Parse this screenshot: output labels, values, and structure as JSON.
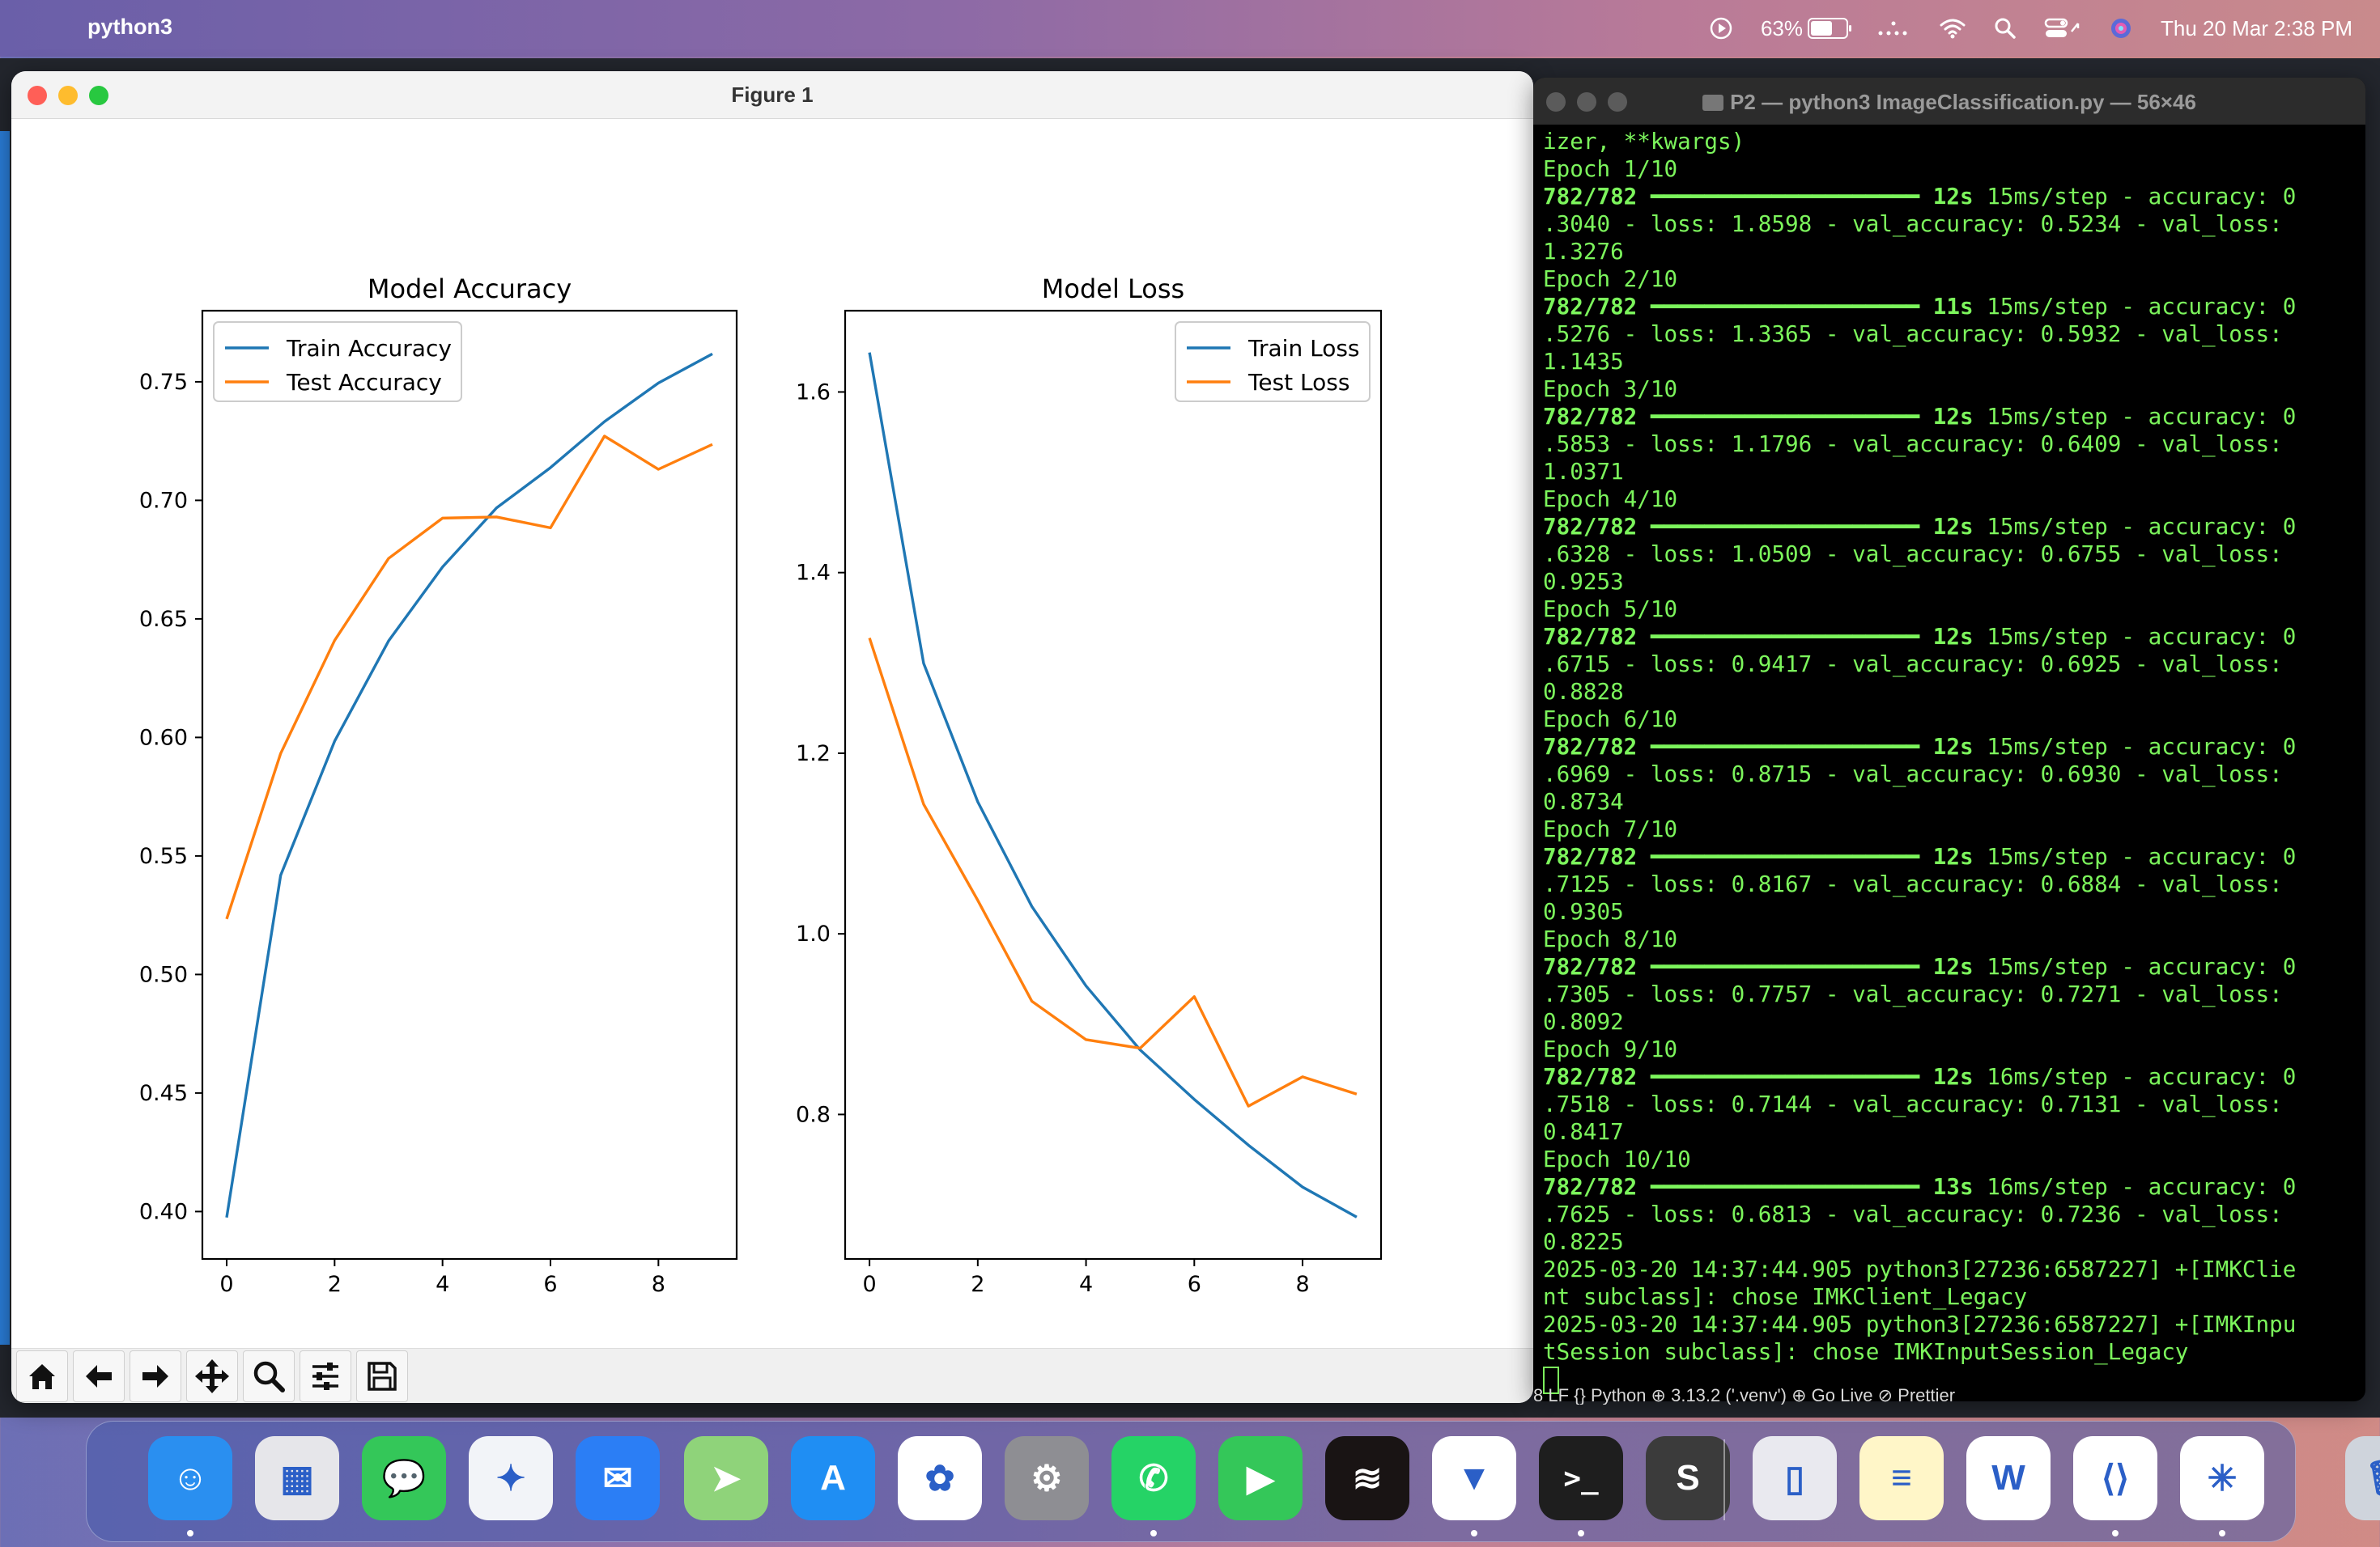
{
  "menubar": {
    "app_name": "python3",
    "battery": "63%",
    "battery_level": 0.63,
    "datetime": "Thu 20 Mar  2:38 PM"
  },
  "figure": {
    "window_title": "Figure 1",
    "toolbar": [
      "home-icon",
      "back-icon",
      "forward-icon",
      "pan-icon",
      "zoom-icon",
      "configure-icon",
      "save-icon"
    ]
  },
  "chart_data": [
    {
      "type": "line",
      "title": "Model Accuracy",
      "x": [
        0,
        1,
        2,
        3,
        4,
        5,
        6,
        7,
        8,
        9
      ],
      "xticks": [
        "0",
        "2",
        "4",
        "6",
        "8"
      ],
      "yticks": [
        "0.40",
        "0.45",
        "0.50",
        "0.55",
        "0.60",
        "0.65",
        "0.70",
        "0.75"
      ],
      "ylim": [
        0.38,
        0.78
      ],
      "xlim": [
        -0.45,
        9.45
      ],
      "legend_position": "upper-left",
      "series": [
        {
          "name": "Train Accuracy",
          "color": "#1f77b4",
          "values": [
            0.3975,
            0.5418,
            0.5984,
            0.6407,
            0.6719,
            0.6968,
            0.7138,
            0.7332,
            0.7495,
            0.7618
          ]
        },
        {
          "name": "Test Accuracy",
          "color": "#ff7f0e",
          "values": [
            0.5234,
            0.5932,
            0.6409,
            0.6755,
            0.6925,
            0.693,
            0.6884,
            0.7271,
            0.7131,
            0.7236
          ]
        }
      ]
    },
    {
      "type": "line",
      "title": "Model Loss",
      "x": [
        0,
        1,
        2,
        3,
        4,
        5,
        6,
        7,
        8,
        9
      ],
      "xticks": [
        "0",
        "2",
        "4",
        "6",
        "8"
      ],
      "yticks": [
        "0.8",
        "1.0",
        "1.2",
        "1.4",
        "1.6"
      ],
      "ylim": [
        0.64,
        1.69
      ],
      "xlim": [
        -0.45,
        9.45
      ],
      "legend_position": "upper-right",
      "series": [
        {
          "name": "Train Loss",
          "color": "#1f77b4",
          "values": [
            1.6437,
            1.2995,
            1.1462,
            1.0302,
            0.9423,
            0.8715,
            0.8167,
            0.766,
            0.7196,
            0.6864
          ]
        },
        {
          "name": "Test Loss",
          "color": "#ff7f0e",
          "values": [
            1.3276,
            1.1435,
            1.0371,
            0.9253,
            0.8828,
            0.8734,
            0.9305,
            0.8092,
            0.8417,
            0.8225
          ]
        }
      ]
    }
  ],
  "terminal": {
    "window_title": "P2 — python3 ImageClassification.py — 56×46",
    "first_line": "izer, **kwargs)",
    "epochs": [
      {
        "label": "Epoch 1/10",
        "step": "782/782",
        "bar": "━━━━━━━━━━━━━━━━━━━━",
        "time": "12s",
        "rate": "15ms/step - accuracy: 0",
        "line2": ".3040 - loss: 1.8598 - val_accuracy: 0.5234 - val_loss:",
        "line3": "1.3276"
      },
      {
        "label": "Epoch 2/10",
        "step": "782/782",
        "bar": "━━━━━━━━━━━━━━━━━━━━",
        "time": "11s",
        "rate": "15ms/step - accuracy: 0",
        "line2": ".5276 - loss: 1.3365 - val_accuracy: 0.5932 - val_loss:",
        "line3": "1.1435"
      },
      {
        "label": "Epoch 3/10",
        "step": "782/782",
        "bar": "━━━━━━━━━━━━━━━━━━━━",
        "time": "12s",
        "rate": "15ms/step - accuracy: 0",
        "line2": ".5853 - loss: 1.1796 - val_accuracy: 0.6409 - val_loss:",
        "line3": "1.0371"
      },
      {
        "label": "Epoch 4/10",
        "step": "782/782",
        "bar": "━━━━━━━━━━━━━━━━━━━━",
        "time": "12s",
        "rate": "15ms/step - accuracy: 0",
        "line2": ".6328 - loss: 1.0509 - val_accuracy: 0.6755 - val_loss:",
        "line3": "0.9253"
      },
      {
        "label": "Epoch 5/10",
        "step": "782/782",
        "bar": "━━━━━━━━━━━━━━━━━━━━",
        "time": "12s",
        "rate": "15ms/step - accuracy: 0",
        "line2": ".6715 - loss: 0.9417 - val_accuracy: 0.6925 - val_loss:",
        "line3": "0.8828"
      },
      {
        "label": "Epoch 6/10",
        "step": "782/782",
        "bar": "━━━━━━━━━━━━━━━━━━━━",
        "time": "12s",
        "rate": "15ms/step - accuracy: 0",
        "line2": ".6969 - loss: 0.8715 - val_accuracy: 0.6930 - val_loss:",
        "line3": "0.8734"
      },
      {
        "label": "Epoch 7/10",
        "step": "782/782",
        "bar": "━━━━━━━━━━━━━━━━━━━━",
        "time": "12s",
        "rate": "15ms/step - accuracy: 0",
        "line2": ".7125 - loss: 0.8167 - val_accuracy: 0.6884 - val_loss:",
        "line3": "0.9305"
      },
      {
        "label": "Epoch 8/10",
        "step": "782/782",
        "bar": "━━━━━━━━━━━━━━━━━━━━",
        "time": "12s",
        "rate": "15ms/step - accuracy: 0",
        "line2": ".7305 - loss: 0.7757 - val_accuracy: 0.7271 - val_loss:",
        "line3": "0.8092"
      },
      {
        "label": "Epoch 9/10",
        "step": "782/782",
        "bar": "━━━━━━━━━━━━━━━━━━━━",
        "time": "12s",
        "rate": "16ms/step - accuracy: 0",
        "line2": ".7518 - loss: 0.7144 - val_accuracy: 0.7131 - val_loss:",
        "line3": "0.8417"
      },
      {
        "label": "Epoch 10/10",
        "step": "782/782",
        "bar": "━━━━━━━━━━━━━━━━━━━━",
        "time": "13s",
        "rate": "16ms/step - accuracy: 0",
        "line2": ".7625 - loss: 0.6813 - val_accuracy: 0.7236 - val_loss:",
        "line3": "0.8225"
      }
    ],
    "log_lines": [
      "2025-03-20 14:37:44.905 python3[27236:6587227] +[IMKClie",
      "nt subclass]: chose IMKClient_Legacy",
      "2025-03-20 14:37:44.905 python3[27236:6587227] +[IMKInpu",
      "tSession subclass]: chose IMKInputSession_Legacy"
    ],
    "status_strip": "8   LF   {} Python   ⊕   3.13.2 ('.venv')   ⊕ Go Live   ⊘ Prettier"
  },
  "dock": {
    "items": [
      {
        "name": "Finder",
        "icon": "finder-icon",
        "color": "#2a8ff0",
        "running": true
      },
      {
        "name": "Launchpad",
        "icon": "launchpad-icon",
        "color": "#e6e6ea",
        "running": false
      },
      {
        "name": "Messages",
        "icon": "messages-icon",
        "color": "#34c759",
        "running": false
      },
      {
        "name": "Safari",
        "icon": "safari-icon",
        "color": "#f2f4f8",
        "running": false
      },
      {
        "name": "Mail",
        "icon": "mail-icon",
        "color": "#2b7ef5",
        "running": false
      },
      {
        "name": "Maps",
        "icon": "maps-icon",
        "color": "#8fd37a",
        "running": false
      },
      {
        "name": "App Store",
        "icon": "app-store-icon",
        "color": "#1f8ef3",
        "running": false
      },
      {
        "name": "Photos",
        "icon": "photos-icon",
        "color": "#ffffff",
        "running": false
      },
      {
        "name": "System Settings",
        "icon": "system-settings-icon",
        "color": "#8e8e93",
        "running": false
      },
      {
        "name": "WhatsApp",
        "icon": "whatsapp-icon",
        "color": "#25d366",
        "running": true
      },
      {
        "name": "FaceTime",
        "icon": "facetime-icon",
        "color": "#34c759",
        "running": false
      },
      {
        "name": "Spotify",
        "icon": "spotify-icon",
        "color": "#191414",
        "running": false
      },
      {
        "name": "Brave",
        "icon": "brave-icon",
        "color": "#ffffff",
        "running": true
      },
      {
        "name": "Terminal",
        "icon": "terminal-icon",
        "color": "#1e1e1e",
        "running": true
      },
      {
        "name": "Sublime Text",
        "icon": "sublime-icon",
        "color": "#3b3b3b",
        "running": false
      },
      {
        "name": "iPhone Mirroring",
        "icon": "iphone-mirroring-icon",
        "color": "#e9e9ef",
        "running": false
      },
      {
        "name": "Notes",
        "icon": "notes-icon",
        "color": "#fff6c8",
        "running": false
      },
      {
        "name": "Word",
        "icon": "word-icon",
        "color": "#ffffff",
        "running": false
      },
      {
        "name": "VS Code",
        "icon": "vscode-icon",
        "color": "#ffffff",
        "running": true
      },
      {
        "name": "Pinwheel",
        "icon": "pinwheel-icon",
        "color": "#ffffff",
        "running": true
      },
      {
        "name": "Trash",
        "icon": "trash-icon",
        "color": "#cfd4dc",
        "running": false
      }
    ]
  }
}
